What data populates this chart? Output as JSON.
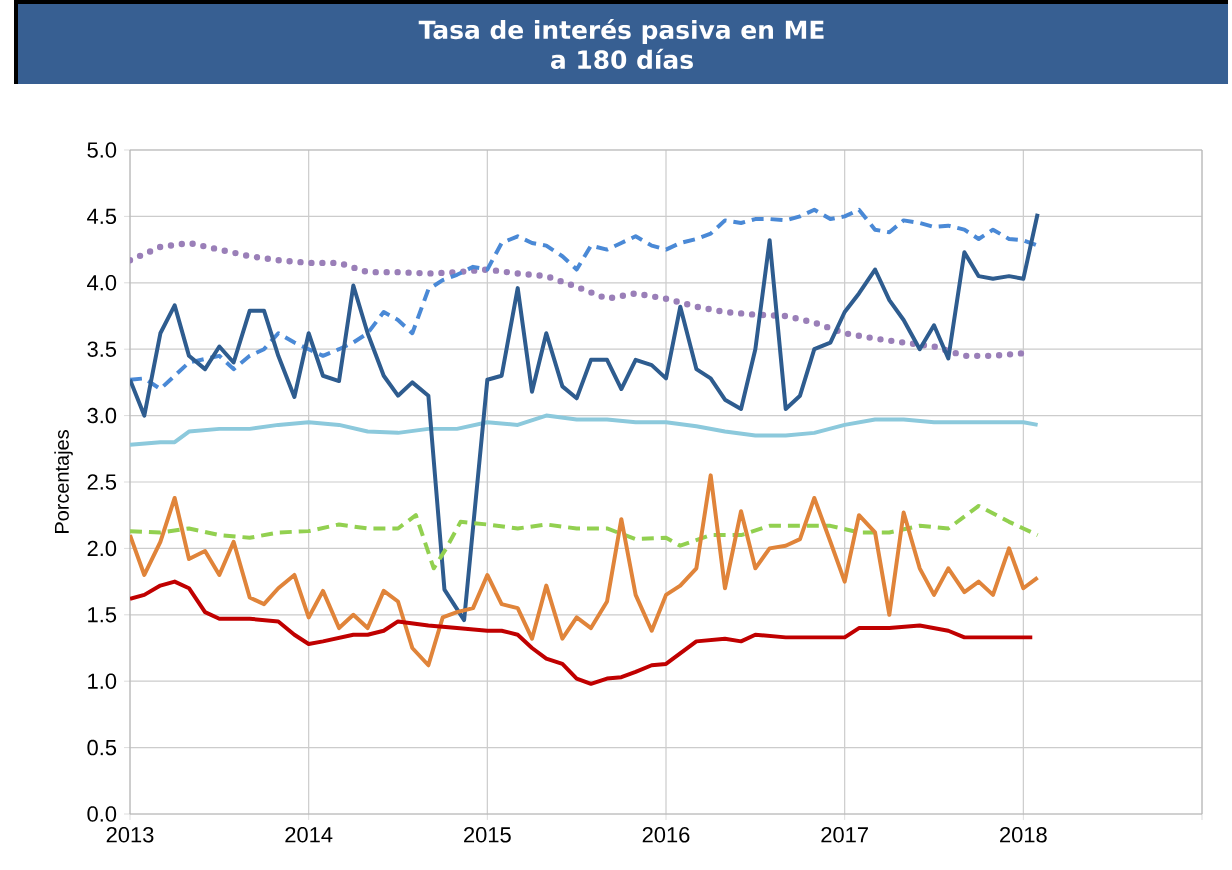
{
  "chart_data": {
    "type": "line",
    "title": "Tasa de interés pasiva en ME",
    "subtitle": "a 180 días",
    "ylabel": "Porcentajes",
    "xlim": [
      2013,
      2019
    ],
    "ylim": [
      0,
      5
    ],
    "xticks": [
      2013,
      2014,
      2015,
      2016,
      2017,
      2018,
      {
        "value": 2019,
        "label": null
      }
    ],
    "yticks": [
      {
        "value": 0,
        "label": "0.0"
      },
      {
        "value": 0.5,
        "label": "0.5"
      },
      {
        "value": 1,
        "label": "1.0"
      },
      {
        "value": 1.5,
        "label": "1.5"
      },
      {
        "value": 2,
        "label": "2.0"
      },
      {
        "value": 2.5,
        "label": "2.5"
      },
      {
        "value": 3,
        "label": "3.0"
      },
      {
        "value": 3.5,
        "label": "3.5"
      },
      {
        "value": 4,
        "label": "4.0"
      },
      {
        "value": 4.5,
        "label": "4.5"
      },
      {
        "value": 5,
        "label": "5.0"
      }
    ],
    "grid": true,
    "marker": "none",
    "series": [
      {
        "color": "#8cc9dc",
        "line_style": "solid",
        "x": [
          2013,
          2013.17,
          2013.25,
          2013.33,
          2013.5,
          2013.67,
          2013.83,
          2014,
          2014.17,
          2014.33,
          2014.5,
          2014.67,
          2014.83,
          2015,
          2015.17,
          2015.33,
          2015.5,
          2015.67,
          2015.83,
          2016,
          2016.17,
          2016.33,
          2016.5,
          2016.67,
          2016.83,
          2017,
          2017.17,
          2017.33,
          2017.5,
          2017.67,
          2017.83,
          2018,
          2018.08
        ],
        "values": [
          2.78,
          2.8,
          2.8,
          2.88,
          2.9,
          2.9,
          2.93,
          2.95,
          2.93,
          2.88,
          2.87,
          2.9,
          2.9,
          2.95,
          2.93,
          3.0,
          2.97,
          2.97,
          2.95,
          2.95,
          2.92,
          2.88,
          2.85,
          2.85,
          2.87,
          2.93,
          2.97,
          2.97,
          2.95,
          2.95,
          2.95,
          2.95,
          2.93
        ]
      },
      {
        "color": "#9a7fb8",
        "line_style": "dotted",
        "x": [
          2013,
          2013.17,
          2013.33,
          2013.5,
          2013.67,
          2013.83,
          2014,
          2014.17,
          2014.33,
          2014.5,
          2014.67,
          2014.83,
          2015,
          2015.17,
          2015.33,
          2015.5,
          2015.67,
          2015.83,
          2016,
          2016.17,
          2016.33,
          2016.5,
          2016.67,
          2016.83,
          2017,
          2017.17,
          2017.33,
          2017.5,
          2017.67,
          2017.83,
          2018
        ],
        "values": [
          4.17,
          4.27,
          4.3,
          4.25,
          4.2,
          4.17,
          4.15,
          4.15,
          4.08,
          4.08,
          4.07,
          4.08,
          4.1,
          4.07,
          4.05,
          3.97,
          3.88,
          3.92,
          3.88,
          3.82,
          3.78,
          3.76,
          3.75,
          3.7,
          3.62,
          3.58,
          3.55,
          3.52,
          3.45,
          3.45,
          3.47
        ]
      },
      {
        "color": "#4a89d6",
        "line_style": "dashed",
        "x": [
          2013,
          2013.08,
          2013.17,
          2013.25,
          2013.33,
          2013.5,
          2013.58,
          2013.67,
          2013.75,
          2013.83,
          2013.92,
          2014,
          2014.08,
          2014.17,
          2014.25,
          2014.33,
          2014.42,
          2014.5,
          2014.58,
          2014.67,
          2014.75,
          2014.83,
          2014.92,
          2015,
          2015.08,
          2015.17,
          2015.25,
          2015.33,
          2015.42,
          2015.5,
          2015.58,
          2015.67,
          2015.75,
          2015.83,
          2015.92,
          2016,
          2016.08,
          2016.17,
          2016.25,
          2016.33,
          2016.42,
          2016.5,
          2016.58,
          2016.67,
          2016.75,
          2016.83,
          2016.92,
          2017,
          2017.08,
          2017.17,
          2017.25,
          2017.33,
          2017.42,
          2017.5,
          2017.58,
          2017.67,
          2017.75,
          2017.83,
          2017.92,
          2018,
          2018.08
        ],
        "values": [
          3.27,
          3.28,
          3.2,
          3.3,
          3.4,
          3.45,
          3.35,
          3.45,
          3.5,
          3.62,
          3.55,
          3.5,
          3.45,
          3.5,
          3.55,
          3.62,
          3.78,
          3.72,
          3.62,
          3.95,
          4.02,
          4.06,
          4.12,
          4.1,
          4.3,
          4.35,
          4.3,
          4.28,
          4.2,
          4.1,
          4.28,
          4.25,
          4.3,
          4.35,
          4.28,
          4.25,
          4.3,
          4.33,
          4.37,
          4.47,
          4.45,
          4.48,
          4.48,
          4.47,
          4.5,
          4.55,
          4.48,
          4.5,
          4.55,
          4.4,
          4.38,
          4.47,
          4.45,
          4.42,
          4.43,
          4.4,
          4.33,
          4.4,
          4.33,
          4.32,
          4.28
        ]
      },
      {
        "color": "#2e5c8f",
        "line_style": "solid",
        "x": [
          2013,
          2013.08,
          2013.17,
          2013.25,
          2013.33,
          2013.42,
          2013.5,
          2013.58,
          2013.67,
          2013.75,
          2013.83,
          2013.92,
          2014,
          2014.08,
          2014.17,
          2014.25,
          2014.33,
          2014.42,
          2014.5,
          2014.58,
          2014.67,
          2014.76,
          2014.87,
          2015,
          2015.08,
          2015.17,
          2015.25,
          2015.33,
          2015.42,
          2015.5,
          2015.58,
          2015.67,
          2015.75,
          2015.83,
          2015.92,
          2016,
          2016.08,
          2016.17,
          2016.25,
          2016.33,
          2016.42,
          2016.5,
          2016.58,
          2016.67,
          2016.75,
          2016.83,
          2016.92,
          2017,
          2017.08,
          2017.17,
          2017.25,
          2017.33,
          2017.42,
          2017.5,
          2017.58,
          2017.67,
          2017.75,
          2017.83,
          2017.92,
          2018,
          2018.08
        ],
        "values": [
          3.27,
          3.0,
          3.62,
          3.83,
          3.45,
          3.35,
          3.52,
          3.4,
          3.79,
          3.79,
          3.45,
          3.14,
          3.62,
          3.3,
          3.26,
          3.98,
          3.62,
          3.3,
          3.15,
          3.25,
          3.15,
          1.69,
          1.46,
          3.27,
          3.3,
          3.96,
          3.18,
          3.62,
          3.22,
          3.13,
          3.42,
          3.42,
          3.2,
          3.42,
          3.38,
          3.28,
          3.82,
          3.35,
          3.28,
          3.12,
          3.05,
          3.5,
          4.32,
          3.05,
          3.15,
          3.5,
          3.55,
          3.78,
          3.92,
          4.1,
          3.87,
          3.72,
          3.5,
          3.68,
          3.43,
          4.23,
          4.05,
          4.03,
          4.05,
          4.03,
          4.52
        ]
      },
      {
        "color": "#92d050",
        "line_style": "dashed",
        "x": [
          2013,
          2013.17,
          2013.33,
          2013.5,
          2013.67,
          2013.83,
          2014,
          2014.17,
          2014.33,
          2014.5,
          2014.6,
          2014.7,
          2014.77,
          2014.85,
          2015,
          2015.17,
          2015.33,
          2015.5,
          2015.67,
          2015.83,
          2016,
          2016.08,
          2016.25,
          2016.42,
          2016.58,
          2016.75,
          2016.92,
          2017.08,
          2017.25,
          2017.42,
          2017.58,
          2017.75,
          2017.92,
          2018,
          2018.08
        ],
        "values": [
          2.13,
          2.12,
          2.15,
          2.1,
          2.08,
          2.12,
          2.13,
          2.18,
          2.15,
          2.15,
          2.25,
          1.85,
          2.0,
          2.2,
          2.18,
          2.15,
          2.18,
          2.15,
          2.15,
          2.07,
          2.08,
          2.02,
          2.1,
          2.1,
          2.17,
          2.17,
          2.17,
          2.12,
          2.12,
          2.17,
          2.15,
          2.32,
          2.2,
          2.15,
          2.1
        ]
      },
      {
        "color": "#e0843a",
        "line_style": "solid",
        "x": [
          2013,
          2013.08,
          2013.17,
          2013.25,
          2013.33,
          2013.42,
          2013.5,
          2013.58,
          2013.67,
          2013.75,
          2013.83,
          2013.92,
          2014,
          2014.08,
          2014.17,
          2014.25,
          2014.33,
          2014.42,
          2014.5,
          2014.58,
          2014.67,
          2014.75,
          2014.83,
          2014.92,
          2015,
          2015.08,
          2015.17,
          2015.25,
          2015.33,
          2015.42,
          2015.5,
          2015.58,
          2015.67,
          2015.75,
          2015.83,
          2015.92,
          2016,
          2016.08,
          2016.17,
          2016.25,
          2016.33,
          2016.42,
          2016.5,
          2016.58,
          2016.67,
          2016.75,
          2016.83,
          2016.92,
          2017,
          2017.08,
          2017.17,
          2017.25,
          2017.33,
          2017.42,
          2017.5,
          2017.58,
          2017.67,
          2017.75,
          2017.83,
          2017.92,
          2018,
          2018.08
        ],
        "values": [
          2.1,
          1.8,
          2.05,
          2.38,
          1.92,
          1.98,
          1.8,
          2.05,
          1.63,
          1.58,
          1.7,
          1.8,
          1.48,
          1.68,
          1.4,
          1.5,
          1.4,
          1.68,
          1.6,
          1.25,
          1.12,
          1.48,
          1.52,
          1.55,
          1.8,
          1.58,
          1.55,
          1.32,
          1.72,
          1.32,
          1.48,
          1.4,
          1.6,
          2.22,
          1.65,
          1.38,
          1.65,
          1.72,
          1.85,
          2.55,
          1.7,
          2.28,
          1.85,
          2.0,
          2.02,
          2.07,
          2.38,
          2.05,
          1.75,
          2.25,
          2.12,
          1.5,
          2.27,
          1.85,
          1.65,
          1.85,
          1.67,
          1.75,
          1.65,
          2.0,
          1.7,
          1.78
        ]
      },
      {
        "color": "#c00000",
        "line_style": "solid",
        "x": [
          2013,
          2013.08,
          2013.17,
          2013.25,
          2013.33,
          2013.42,
          2013.5,
          2013.67,
          2013.83,
          2013.92,
          2014,
          2014.08,
          2014.25,
          2014.33,
          2014.42,
          2014.5,
          2014.67,
          2014.83,
          2015,
          2015.08,
          2015.17,
          2015.25,
          2015.33,
          2015.42,
          2015.5,
          2015.58,
          2015.67,
          2015.75,
          2015.83,
          2015.92,
          2016,
          2016.17,
          2016.33,
          2016.42,
          2016.5,
          2016.67,
          2016.83,
          2017,
          2017.08,
          2017.25,
          2017.42,
          2017.5,
          2017.58,
          2017.67,
          2017.83,
          2018,
          2018.05
        ],
        "values": [
          1.62,
          1.65,
          1.72,
          1.75,
          1.7,
          1.52,
          1.47,
          1.47,
          1.45,
          1.35,
          1.28,
          1.3,
          1.35,
          1.35,
          1.38,
          1.45,
          1.42,
          1.4,
          1.38,
          1.38,
          1.35,
          1.25,
          1.17,
          1.13,
          1.02,
          0.98,
          1.02,
          1.03,
          1.07,
          1.12,
          1.13,
          1.3,
          1.32,
          1.3,
          1.35,
          1.33,
          1.33,
          1.33,
          1.4,
          1.4,
          1.42,
          1.4,
          1.38,
          1.33,
          1.33,
          1.33,
          1.33
        ]
      }
    ]
  }
}
